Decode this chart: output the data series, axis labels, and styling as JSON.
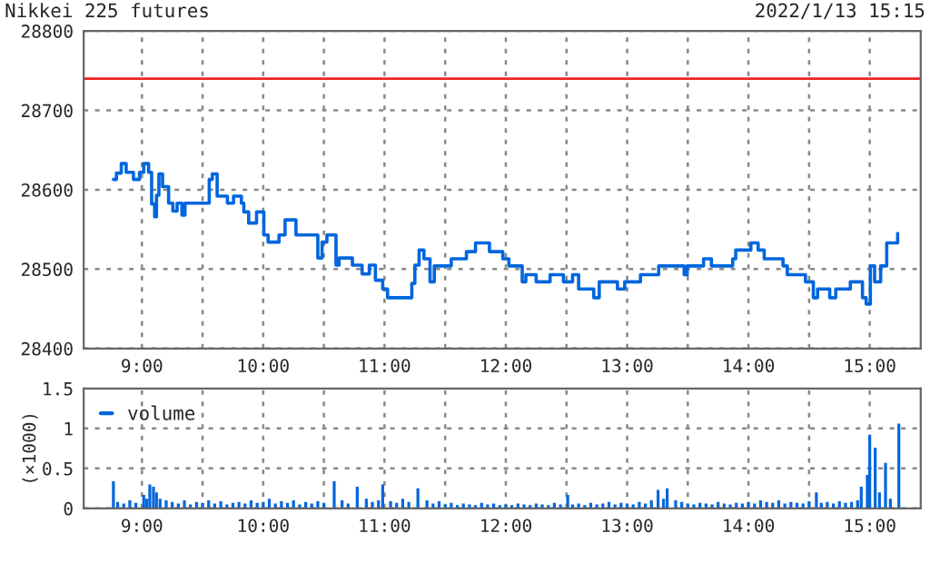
{
  "chart_data": [
    {
      "type": "step",
      "title": "Nikkei 225 futures",
      "annotations": [
        "2022/1/13 15:15"
      ],
      "color": "#0066dd",
      "line_style": "solid",
      "grid": true,
      "x": [
        8.765,
        8.79,
        8.83,
        8.87,
        8.93,
        8.98,
        9.015,
        9.055,
        9.08,
        9.105,
        9.12,
        9.14,
        9.17,
        9.22,
        9.255,
        9.29,
        9.33,
        9.355,
        9.52,
        9.555,
        9.58,
        9.62,
        9.705,
        9.755,
        9.82,
        9.84,
        9.88,
        9.945,
        10.005,
        10.04,
        10.13,
        10.18,
        10.27,
        10.4,
        10.45,
        10.485,
        10.525,
        10.6,
        10.625,
        10.7,
        10.735,
        10.815,
        10.875,
        10.925,
        10.985,
        11.025,
        11.175,
        11.225,
        11.25,
        11.285,
        11.325,
        11.375,
        11.41,
        11.55,
        11.675,
        11.75,
        11.865,
        11.975,
        12.025,
        12.135,
        12.165,
        12.25,
        12.365,
        12.475,
        12.55,
        12.6,
        12.725,
        12.77,
        12.92,
        12.98,
        13.11,
        13.26,
        13.47,
        13.495,
        13.63,
        13.695,
        13.87,
        13.895,
        14.02,
        14.08,
        14.13,
        14.285,
        14.32,
        14.47,
        14.535,
        14.57,
        14.67,
        14.72,
        14.84,
        14.94,
        14.97,
        15.005,
        15.04,
        15.09,
        15.14,
        15.23
      ],
      "values": [
        28613,
        28621,
        28633,
        28622,
        28613,
        28622,
        28633,
        28622,
        28582,
        28566,
        28593,
        28620,
        28604,
        28583,
        28573,
        28583,
        28568,
        28583,
        28583,
        28613,
        28620,
        28592,
        28583,
        28592,
        28583,
        28572,
        28558,
        28572,
        28543,
        28534,
        28543,
        28562,
        28543,
        28543,
        28514,
        28534,
        28543,
        28505,
        28514,
        28514,
        28505,
        28494,
        28505,
        28486,
        28475,
        28464,
        28464,
        28482,
        28505,
        28524,
        28513,
        28484,
        28504,
        28513,
        28522,
        28533,
        28522,
        28513,
        28504,
        28484,
        28493,
        28484,
        28493,
        28484,
        28493,
        28475,
        28464,
        28484,
        28475,
        28484,
        28493,
        28504,
        28493,
        28504,
        28513,
        28504,
        28513,
        28524,
        28533,
        28524,
        28513,
        28504,
        28493,
        28484,
        28464,
        28475,
        28464,
        28475,
        28484,
        28464,
        28456,
        28504,
        28484,
        28504,
        28533,
        28545
      ],
      "xlim": [
        8.52,
        15.42
      ],
      "ylim": [
        28400,
        28800
      ],
      "yticks": [
        28400,
        28500,
        28600,
        28700,
        28800
      ],
      "xticks": [
        {
          "value": 9,
          "label": "9:00"
        },
        {
          "value": 9.5,
          "label": null
        },
        {
          "value": 10,
          "label": "10:00"
        },
        {
          "value": 10.5,
          "label": null
        },
        {
          "value": 11,
          "label": "11:00"
        },
        {
          "value": 11.5,
          "label": null
        },
        {
          "value": 12,
          "label": "12:00"
        },
        {
          "value": 12.5,
          "label": null
        },
        {
          "value": 13,
          "label": "13:00"
        },
        {
          "value": 13.5,
          "label": null
        },
        {
          "value": 14,
          "label": "14:00"
        },
        {
          "value": 14.5,
          "label": null
        },
        {
          "value": 15,
          "label": "15:00"
        }
      ],
      "ref_lines": [
        {
          "axis": "y",
          "value": 28740,
          "color": "#ee2222"
        }
      ]
    },
    {
      "type": "bar",
      "ylabel": "(×1000)",
      "legend": "top left",
      "grid": true,
      "series": [
        {
          "name": "volume",
          "color": "#0066dd",
          "x": [
            8.765,
            8.8,
            8.85,
            8.9,
            8.95,
            9.015,
            9.04,
            9.065,
            9.095,
            9.12,
            9.15,
            9.2,
            9.25,
            9.3,
            9.35,
            9.4,
            9.45,
            9.5,
            9.55,
            9.6,
            9.65,
            9.7,
            9.75,
            9.8,
            9.85,
            9.9,
            9.95,
            10.0,
            10.05,
            10.1,
            10.15,
            10.2,
            10.25,
            10.3,
            10.35,
            10.4,
            10.45,
            10.5,
            10.585,
            10.65,
            10.7,
            10.775,
            10.85,
            10.9,
            10.95,
            10.985,
            11.05,
            11.1,
            11.15,
            11.2,
            11.275,
            11.35,
            11.4,
            11.45,
            11.5,
            11.55,
            11.6,
            11.65,
            11.7,
            11.75,
            11.8,
            11.85,
            11.9,
            11.95,
            12.0,
            12.05,
            12.1,
            12.15,
            12.2,
            12.25,
            12.3,
            12.35,
            12.4,
            12.45,
            12.51,
            12.55,
            12.6,
            12.65,
            12.7,
            12.75,
            12.8,
            12.85,
            12.9,
            12.95,
            13.0,
            13.05,
            13.1,
            13.15,
            13.2,
            13.255,
            13.3,
            13.33,
            13.4,
            13.45,
            13.5,
            13.55,
            13.6,
            13.65,
            13.7,
            13.75,
            13.8,
            13.85,
            13.9,
            13.95,
            14.0,
            14.05,
            14.1,
            14.15,
            14.2,
            14.25,
            14.3,
            14.35,
            14.4,
            14.45,
            14.5,
            14.56,
            14.6,
            14.65,
            14.7,
            14.75,
            14.8,
            14.85,
            14.9,
            14.93,
            14.98,
            15.0,
            15.045,
            15.08,
            15.13,
            15.17,
            15.24
          ],
          "values": [
            0.34,
            0.08,
            0.06,
            0.1,
            0.07,
            0.17,
            0.12,
            0.3,
            0.27,
            0.2,
            0.12,
            0.1,
            0.08,
            0.06,
            0.1,
            0.05,
            0.08,
            0.07,
            0.1,
            0.06,
            0.09,
            0.05,
            0.07,
            0.08,
            0.06,
            0.1,
            0.07,
            0.08,
            0.12,
            0.06,
            0.09,
            0.07,
            0.1,
            0.05,
            0.08,
            0.06,
            0.09,
            0.07,
            0.34,
            0.1,
            0.06,
            0.27,
            0.12,
            0.08,
            0.1,
            0.3,
            0.09,
            0.07,
            0.12,
            0.08,
            0.25,
            0.1,
            0.06,
            0.09,
            0.05,
            0.07,
            0.04,
            0.06,
            0.05,
            0.04,
            0.07,
            0.05,
            0.06,
            0.04,
            0.05,
            0.04,
            0.06,
            0.05,
            0.04,
            0.06,
            0.05,
            0.04,
            0.07,
            0.05,
            0.17,
            0.05,
            0.06,
            0.04,
            0.07,
            0.05,
            0.06,
            0.08,
            0.05,
            0.07,
            0.06,
            0.05,
            0.08,
            0.06,
            0.1,
            0.23,
            0.12,
            0.25,
            0.1,
            0.08,
            0.06,
            0.05,
            0.07,
            0.06,
            0.05,
            0.08,
            0.06,
            0.05,
            0.07,
            0.06,
            0.08,
            0.06,
            0.1,
            0.08,
            0.07,
            0.1,
            0.06,
            0.08,
            0.07,
            0.06,
            0.09,
            0.2,
            0.07,
            0.08,
            0.06,
            0.09,
            0.07,
            0.08,
            0.1,
            0.27,
            0.42,
            0.92,
            0.76,
            0.2,
            0.57,
            0.12,
            1.06
          ]
        }
      ],
      "xlim": [
        8.52,
        15.42
      ],
      "ylim": [
        0,
        1.5
      ],
      "yticks": [
        0,
        0.5,
        1,
        1.5
      ],
      "xticks": [
        {
          "value": 9,
          "label": "9:00"
        },
        {
          "value": 9.5,
          "label": null
        },
        {
          "value": 10,
          "label": "10:00"
        },
        {
          "value": 10.5,
          "label": null
        },
        {
          "value": 11,
          "label": "11:00"
        },
        {
          "value": 11.5,
          "label": null
        },
        {
          "value": 12,
          "label": "12:00"
        },
        {
          "value": 12.5,
          "label": null
        },
        {
          "value": 13,
          "label": "13:00"
        },
        {
          "value": 13.5,
          "label": null
        },
        {
          "value": 14,
          "label": "14:00"
        },
        {
          "value": 14.5,
          "label": null
        },
        {
          "value": 15,
          "label": "15:00"
        }
      ]
    }
  ]
}
